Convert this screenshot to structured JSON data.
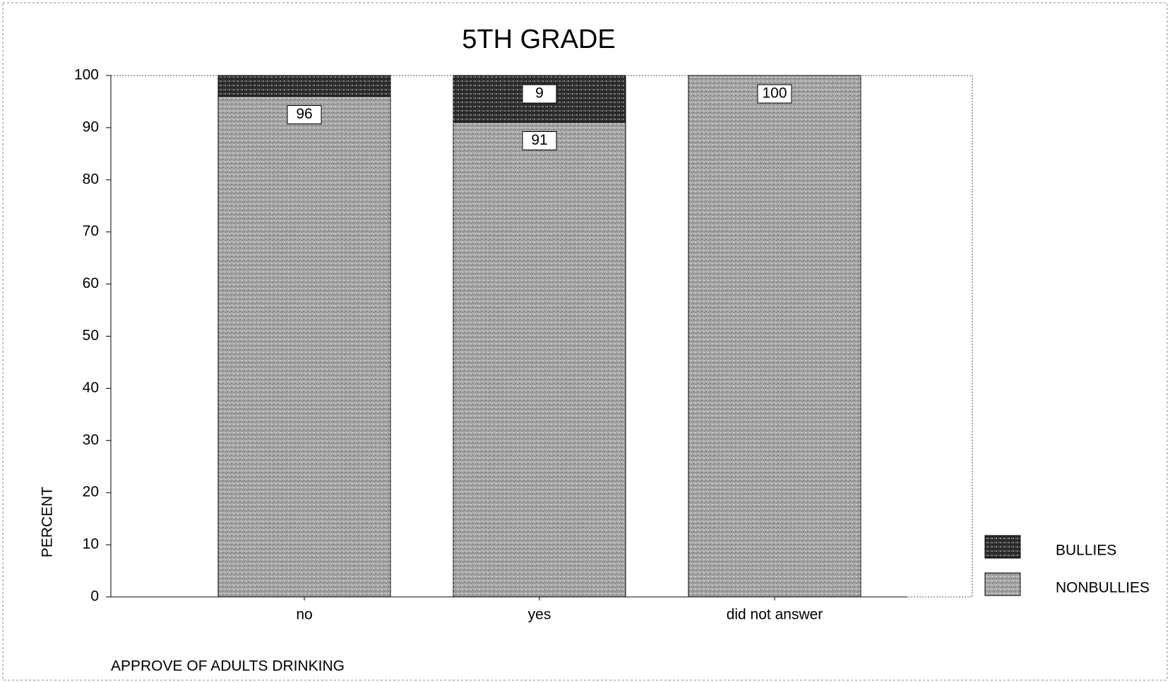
{
  "chart_data": {
    "type": "bar",
    "stacked": true,
    "title": "5TH GRADE",
    "x_label": "APPROVE OF ADULTS DRINKING",
    "y_label": "PERCENT",
    "categories": [
      "no",
      "yes",
      "did not answer"
    ],
    "series": [
      {
        "name": "NONBULLIES",
        "color": "#a4a4a4",
        "values": [
          96,
          91,
          100
        ],
        "value_labels": [
          "96",
          "91",
          "100"
        ]
      },
      {
        "name": "BULLIES",
        "color": "#2e2e2e",
        "values": [
          4,
          9,
          0
        ],
        "value_labels": [
          null,
          "9",
          null
        ]
      }
    ],
    "ylim": [
      0,
      100
    ],
    "yticks": [
      0,
      10,
      20,
      30,
      40,
      50,
      60,
      70,
      80,
      90,
      100
    ],
    "legend": "right"
  }
}
